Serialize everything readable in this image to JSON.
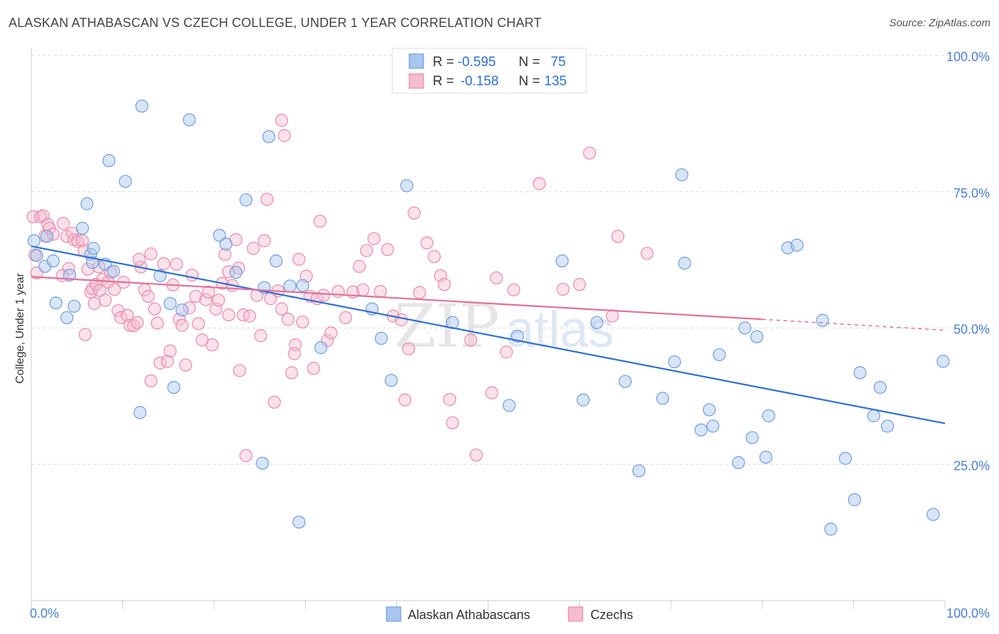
{
  "title": "ALASKAN ATHABASCAN VS CZECH COLLEGE, UNDER 1 YEAR CORRELATION CHART",
  "source": "Source: ZipAtlas.com",
  "colors": {
    "blue_fill": "#a9c6ef",
    "blue_stroke": "#6f9de0",
    "blue_line": "#2f6fd1",
    "pink_fill": "#f6bcd0",
    "pink_stroke": "#e98aab",
    "pink_line": "#e07099",
    "grid": "#d9d9d9",
    "tick_text": "#4a7fd0"
  },
  "legend": {
    "r_label": "R =",
    "n_label": "N =",
    "blue_r": "-0.595",
    "blue_n": "75",
    "pink_r": "-0.158",
    "pink_n": "135"
  },
  "watermark": {
    "zip": "ZIP",
    "atlas": "atlas"
  },
  "chart_data": {
    "type": "scatter",
    "title": "ALASKAN ATHABASCAN VS CZECH COLLEGE, UNDER 1 YEAR CORRELATION CHART",
    "xlabel": "",
    "ylabel": "College, Under 1 year",
    "xlim": [
      0,
      100
    ],
    "ylim": [
      0,
      100
    ],
    "x_tick_labels": [
      "0.0%",
      "100.0%"
    ],
    "y_tick_values": [
      25,
      50,
      75,
      100
    ],
    "y_tick_labels": [
      "25.0%",
      "50.0%",
      "75.0%",
      "100.0%"
    ],
    "series": [
      {
        "name": "Alaskan Athabascans",
        "color": "#6f9de0",
        "trend": {
          "x": [
            0,
            100
          ],
          "y": [
            65,
            32.5
          ],
          "style": "solid"
        },
        "points": [
          [
            0.3,
            66
          ],
          [
            0.6,
            63.3
          ],
          [
            1.5,
            61.3
          ],
          [
            1.7,
            66.8
          ],
          [
            2.4,
            62.3
          ],
          [
            2.7,
            54.6
          ],
          [
            3.9,
            51.9
          ],
          [
            4.2,
            59.7
          ],
          [
            4.7,
            54
          ],
          [
            5.6,
            68.3
          ],
          [
            6.1,
            72.8
          ],
          [
            6.5,
            63.5
          ],
          [
            6.7,
            62
          ],
          [
            6.8,
            64.6
          ],
          [
            8.1,
            61.7
          ],
          [
            8.5,
            80.7
          ],
          [
            9,
            60.4
          ],
          [
            10.3,
            76.9
          ],
          [
            11.9,
            34.5
          ],
          [
            12.1,
            90.7
          ],
          [
            14.1,
            59.6
          ],
          [
            15.2,
            54.5
          ],
          [
            15.6,
            39.1
          ],
          [
            16.5,
            53.3
          ],
          [
            17.3,
            88.2
          ],
          [
            20.6,
            67
          ],
          [
            21.3,
            65.4
          ],
          [
            22.4,
            60.2
          ],
          [
            23.5,
            73.5
          ],
          [
            25.3,
            25.2
          ],
          [
            25.5,
            57.4
          ],
          [
            26,
            85.1
          ],
          [
            26.8,
            62.3
          ],
          [
            28.3,
            57.7
          ],
          [
            29.3,
            14.4
          ],
          [
            29.7,
            57.8
          ],
          [
            31.7,
            46.4
          ],
          [
            37.3,
            53.5
          ],
          [
            38.3,
            48.1
          ],
          [
            39.4,
            40.4
          ],
          [
            41.1,
            76.1
          ],
          [
            46.1,
            51
          ],
          [
            52.3,
            35.8
          ],
          [
            53.2,
            48.5
          ],
          [
            58.1,
            62.3
          ],
          [
            60.4,
            36.8
          ],
          [
            61.9,
            51
          ],
          [
            65,
            40.2
          ],
          [
            66.5,
            23.8
          ],
          [
            69.1,
            37.1
          ],
          [
            70.4,
            43.8
          ],
          [
            71.2,
            78.1
          ],
          [
            71.5,
            61.9
          ],
          [
            73.3,
            31.3
          ],
          [
            74.2,
            35
          ],
          [
            74.6,
            32
          ],
          [
            75.3,
            45.1
          ],
          [
            77.4,
            25.3
          ],
          [
            78.1,
            50
          ],
          [
            78.9,
            29.9
          ],
          [
            79.4,
            48.4
          ],
          [
            80.4,
            26.3
          ],
          [
            80.7,
            33.9
          ],
          [
            82.8,
            64.7
          ],
          [
            83.8,
            65.2
          ],
          [
            86.6,
            51.4
          ],
          [
            87.5,
            13.1
          ],
          [
            89.1,
            26.1
          ],
          [
            90.1,
            18.5
          ],
          [
            90.7,
            41.8
          ],
          [
            92.2,
            33.9
          ],
          [
            92.9,
            39.1
          ],
          [
            93.7,
            32
          ],
          [
            98.7,
            15.8
          ],
          [
            99.8,
            43.9
          ]
        ]
      },
      {
        "name": "Czechs",
        "color": "#e98aab",
        "trend": {
          "x": [
            0,
            80
          ],
          "y": [
            59.4,
            51.6
          ],
          "x_dashed": [
            80,
            100
          ],
          "y_dashed": [
            51.6,
            49.6
          ],
          "style": "solid+dashed"
        },
        "points": [
          [
            0.2,
            70.4
          ],
          [
            0.4,
            63.4
          ],
          [
            0.6,
            60.1
          ],
          [
            1,
            70.4
          ],
          [
            1.3,
            70.6
          ],
          [
            1.5,
            66.9
          ],
          [
            1.8,
            69
          ],
          [
            2,
            68.3
          ],
          [
            2.4,
            67.2
          ],
          [
            3.5,
            69.2
          ],
          [
            3.9,
            66.8
          ],
          [
            4.1,
            60.9
          ],
          [
            4.5,
            67.4
          ],
          [
            4.7,
            66.2
          ],
          [
            5.1,
            65.9
          ],
          [
            5.6,
            66
          ],
          [
            5.8,
            64.2
          ],
          [
            6.2,
            60.8
          ],
          [
            6.5,
            56.6
          ],
          [
            6.7,
            57.2
          ],
          [
            6.9,
            54.5
          ],
          [
            7.1,
            58
          ],
          [
            7.5,
            56.9
          ],
          [
            7.8,
            58.9
          ],
          [
            8.1,
            55.1
          ],
          [
            8.4,
            58.4
          ],
          [
            8.7,
            60.2
          ],
          [
            9.1,
            57.1
          ],
          [
            9.5,
            53.2
          ],
          [
            9.8,
            51.9
          ],
          [
            10.1,
            58.4
          ],
          [
            10.5,
            52.3
          ],
          [
            10.8,
            50.5
          ],
          [
            11.2,
            50.4
          ],
          [
            11.6,
            51
          ],
          [
            12,
            61.2
          ],
          [
            12.4,
            57
          ],
          [
            12.8,
            55.8
          ],
          [
            13.1,
            63.6
          ],
          [
            13.5,
            53.5
          ],
          [
            13.8,
            50.9
          ],
          [
            14.1,
            43.6
          ],
          [
            14.5,
            61.8
          ],
          [
            14.9,
            43.9
          ],
          [
            15.2,
            45.8
          ],
          [
            15.5,
            57.9
          ],
          [
            15.9,
            61.7
          ],
          [
            16.2,
            51.6
          ],
          [
            16.5,
            50.5
          ],
          [
            16.9,
            43.2
          ],
          [
            17.3,
            53.7
          ],
          [
            17.6,
            59.7
          ],
          [
            18,
            55.8
          ],
          [
            18.3,
            50.8
          ],
          [
            18.7,
            47.8
          ],
          [
            19.1,
            55.2
          ],
          [
            19.4,
            56.6
          ],
          [
            19.8,
            46.9
          ],
          [
            20.2,
            53.5
          ],
          [
            20.5,
            55.1
          ],
          [
            20.9,
            58.2
          ],
          [
            21.2,
            63.5
          ],
          [
            21.6,
            52.4
          ],
          [
            22,
            57.8
          ],
          [
            22.4,
            66.2
          ],
          [
            22.8,
            42.2
          ],
          [
            23.2,
            52.4
          ],
          [
            23.5,
            26.6
          ],
          [
            23.9,
            52.2
          ],
          [
            24.3,
            64.6
          ],
          [
            24.7,
            56
          ],
          [
            25.1,
            48.6
          ],
          [
            25.5,
            66
          ],
          [
            25.8,
            73.6
          ],
          [
            26.2,
            55.4
          ],
          [
            26.6,
            36.4
          ],
          [
            27,
            56.8
          ],
          [
            27.4,
            53.5
          ],
          [
            27.7,
            85.3
          ],
          [
            28.1,
            51.6
          ],
          [
            28.5,
            41.8
          ],
          [
            28.9,
            46.9
          ],
          [
            29.3,
            62.6
          ],
          [
            29.7,
            51.1
          ],
          [
            30.1,
            59.5
          ],
          [
            30.5,
            55.8
          ],
          [
            30.9,
            42.6
          ],
          [
            31.3,
            55.4
          ],
          [
            31.6,
            69.6
          ],
          [
            32,
            56
          ],
          [
            32.4,
            47.7
          ],
          [
            32.8,
            49.1
          ],
          [
            33.6,
            56.7
          ],
          [
            34.4,
            51.9
          ],
          [
            35.2,
            56.6
          ],
          [
            35.9,
            61.3
          ],
          [
            36.3,
            57
          ],
          [
            36.7,
            64.2
          ],
          [
            37.5,
            66.4
          ],
          [
            38.2,
            56.7
          ],
          [
            39,
            64.4
          ],
          [
            39.6,
            52.2
          ],
          [
            40.5,
            51.5
          ],
          [
            41.3,
            46.2
          ],
          [
            41.9,
            71.1
          ],
          [
            42.5,
            56.5
          ],
          [
            43.3,
            65.6
          ],
          [
            44.1,
            63.1
          ],
          [
            44.8,
            59.6
          ],
          [
            45.2,
            58
          ],
          [
            45.8,
            36.9
          ],
          [
            46.1,
            32.6
          ],
          [
            48.7,
            26.7
          ],
          [
            50.9,
            59.2
          ],
          [
            52.8,
            57
          ],
          [
            55.6,
            76.5
          ],
          [
            58.2,
            57.1
          ],
          [
            60,
            58
          ],
          [
            61.1,
            82.1
          ],
          [
            64.2,
            66.8
          ],
          [
            67.4,
            63.7
          ],
          [
            63.6,
            52.2
          ],
          [
            52,
            45.6
          ],
          [
            21.6,
            60.3
          ],
          [
            27.4,
            88.1
          ],
          [
            13.1,
            40.3
          ],
          [
            11.8,
            62.6
          ],
          [
            5.9,
            48.8
          ],
          [
            3.4,
            59.6
          ],
          [
            50.4,
            38.1
          ],
          [
            28.8,
            45.3
          ],
          [
            22.7,
            61
          ],
          [
            48.1,
            47.8
          ],
          [
            7.4,
            61.2
          ],
          [
            40.9,
            36.8
          ]
        ]
      }
    ],
    "legend_items": [
      "Alaskan Athabascans",
      "Czechs"
    ]
  }
}
